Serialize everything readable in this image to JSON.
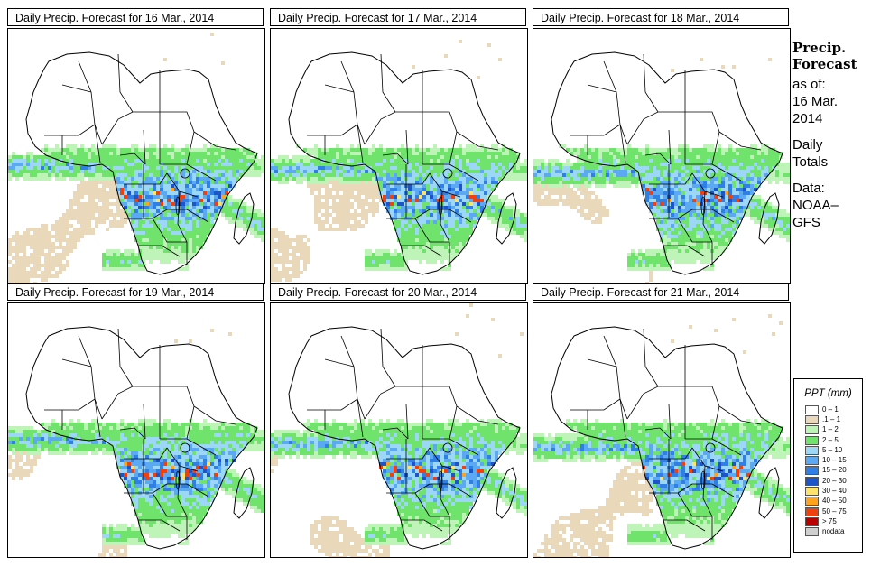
{
  "panels": [
    {
      "title": "Daily Precip. Forecast for  16 Mar., 2014",
      "variant": 0
    },
    {
      "title": "Daily Precip. Forecast for  17 Mar., 2014",
      "variant": 1
    },
    {
      "title": "Daily Precip. Forecast for  18 Mar., 2014",
      "variant": 2
    },
    {
      "title": "Daily Precip. Forecast for  19 Mar., 2014",
      "variant": 3
    },
    {
      "title": "Daily Precip. Forecast for  20 Mar., 2014",
      "variant": 4
    },
    {
      "title": "Daily Precip. Forecast for  21 Mar., 2014",
      "variant": 5
    }
  ],
  "side": {
    "heading1": "Precip.",
    "heading2": "Forecast",
    "asof_label": "as of:",
    "asof_date1": "16 Mar.",
    "asof_date2": "2014",
    "totals1": "Daily",
    "totals2": "Totals",
    "data1": "Data:",
    "data2": "NOAA–",
    "data3": "GFS"
  },
  "legend": {
    "title": "PPT (mm)",
    "classes": [
      {
        "label": "0 – 1",
        "color": "#ffffff"
      },
      {
        "label": ".1 – 1",
        "color": "#ead8bb"
      },
      {
        "label": "1 – 2",
        "color": "#bff4b8"
      },
      {
        "label": "2 – 5",
        "color": "#6fe36c"
      },
      {
        "label": "5 – 10",
        "color": "#9dd7f7"
      },
      {
        "label": "10 – 15",
        "color": "#5aa9f2"
      },
      {
        "label": "15 – 20",
        "color": "#2f7fe6"
      },
      {
        "label": "20 – 30",
        "color": "#1d55c8"
      },
      {
        "label": "30 – 40",
        "color": "#ffe26a"
      },
      {
        "label": "40 – 50",
        "color": "#ffa21c"
      },
      {
        "label": "50 – 75",
        "color": "#f04010"
      },
      {
        "label": "> 75",
        "color": "#b80000"
      },
      {
        "label": "nodata",
        "color": "#cfcfcf"
      }
    ]
  },
  "map_style": {
    "boundary_color": "#000000",
    "ocean_color": "#ffffff"
  }
}
